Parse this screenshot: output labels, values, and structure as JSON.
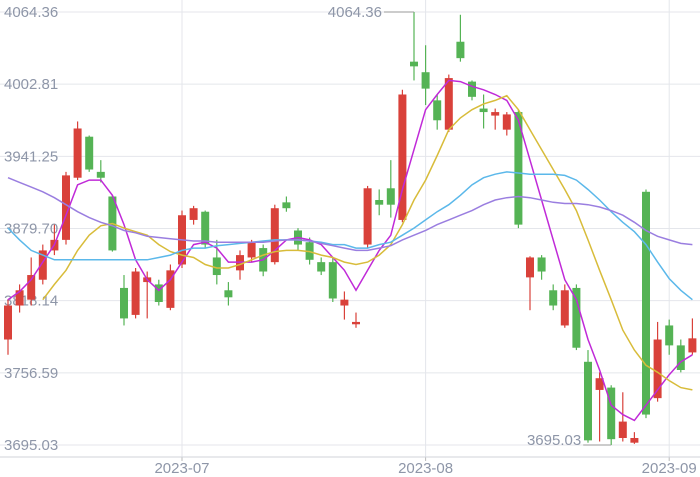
{
  "chart_data": {
    "type": "candlestick",
    "categories": [
      null,
      null,
      null,
      null,
      null,
      null,
      null,
      null,
      null,
      null,
      null,
      null,
      null,
      null,
      null,
      "2023-07",
      null,
      null,
      null,
      null,
      null,
      null,
      null,
      null,
      null,
      null,
      null,
      null,
      null,
      null,
      null,
      null,
      null,
      null,
      null,
      null,
      "2023-08",
      null,
      null,
      null,
      null,
      null,
      null,
      null,
      null,
      null,
      null,
      null,
      null,
      null,
      null,
      null,
      null,
      null,
      null,
      null,
      null,
      "2023-09",
      null,
      null
    ],
    "open": [
      3785,
      3814,
      3819,
      3836,
      3861,
      3870,
      3923,
      3958,
      3928,
      3907,
      3829,
      3806,
      3834,
      3832,
      3812,
      3849,
      3887,
      3894,
      3855,
      3827,
      3844,
      3855,
      3863,
      3851,
      3902,
      3878,
      3868,
      3851,
      3851,
      3814,
      3798,
      3866,
      3904,
      3914,
      3887,
      4022,
      4013,
      3989,
      3964,
      4039,
      4005,
      3982,
      3976,
      3964,
      3979,
      3838,
      3855,
      3827,
      3797,
      3829,
      3766,
      3742,
      3744,
      3701,
      3697,
      3911,
      3735,
      3797,
      3780,
      3774
    ],
    "close": [
      3814,
      3827,
      3840,
      3861,
      3870,
      3925,
      3965,
      3930,
      3923,
      3861,
      3803,
      3843,
      3838,
      3817,
      3844,
      3891,
      3897,
      3866,
      3840,
      3821,
      3857,
      3868,
      3843,
      3897,
      3897,
      3866,
      3853,
      3843,
      3820,
      3819,
      3800,
      3914,
      3900,
      3900,
      3994,
      4018,
      3999,
      3972,
      4008,
      4025,
      3992,
      3979,
      3979,
      3977,
      3883,
      3855,
      3843,
      3814,
      3827,
      3778,
      3699,
      3752,
      3700,
      3715,
      3701,
      3721,
      3785,
      3780,
      3759,
      3786
    ],
    "low": [
      3772,
      3808,
      3814,
      3832,
      3857,
      3866,
      3921,
      3928,
      3919,
      3860,
      3797,
      3803,
      3803,
      3814,
      3810,
      3846,
      3883,
      3863,
      3832,
      3814,
      3836,
      3851,
      3839,
      3849,
      3894,
      3861,
      3849,
      3840,
      3817,
      3802,
      3795,
      3863,
      3891,
      3889,
      3885,
      4006,
      3985,
      3964,
      3962,
      4022,
      3989,
      3965,
      3964,
      3959,
      3880,
      3810,
      3836,
      3810,
      3795,
      3776,
      3697,
      3698,
      3695.03,
      3698,
      3696,
      3718,
      3732,
      3772,
      3757,
      3772
    ],
    "high": [
      3819,
      3832,
      3855,
      3866,
      3883,
      3928,
      3971,
      3959,
      3938,
      3908,
      3840,
      3846,
      3843,
      3836,
      3849,
      3895,
      3899,
      3895,
      3870,
      3834,
      3861,
      3870,
      3866,
      3900,
      3907,
      3880,
      3872,
      3855,
      3855,
      3826,
      3808,
      3916,
      3913,
      3938,
      3998,
      4064.36,
      4036,
      3994,
      4011,
      4062,
      4006,
      3994,
      3982,
      3979,
      3981,
      3856,
      3857,
      3832,
      3832,
      3832,
      3776,
      3757,
      3746,
      3740,
      3706,
      3913,
      3800,
      3802,
      3785,
      3803
    ],
    "up_color": "#d9413a",
    "down_color": "#55b355",
    "series": [
      {
        "color": "#c02ad8",
        "values": [
          3819,
          3826,
          3836,
          3851,
          3866,
          3891,
          3917,
          3921,
          3921,
          3908,
          3883,
          3853,
          3836,
          3827,
          3836,
          3851,
          3866,
          3868,
          3863,
          3851,
          3851,
          3851,
          3853,
          3861,
          3870,
          3872,
          3870,
          3866,
          3855,
          3844,
          3827,
          3844,
          3861,
          3874,
          3913,
          3947,
          3981,
          3994,
          4006,
          4005,
          4001,
          3998,
          3994,
          3989,
          3972,
          3938,
          3904,
          3870,
          3836,
          3819,
          3785,
          3759,
          3729,
          3721,
          3716,
          3729,
          3742,
          3755,
          3766,
          3772
        ]
      },
      {
        "color": "#d8bc3a",
        "values": [
          null,
          null,
          null,
          3819,
          3832,
          3844,
          3861,
          3874,
          3882,
          3884,
          3880,
          3877,
          3874,
          3866,
          3860,
          3857,
          3855,
          3849,
          3846,
          3846,
          3849,
          3853,
          3857,
          3860,
          3861,
          3861,
          3860,
          3857,
          3855,
          3851,
          3849,
          3851,
          3857,
          3866,
          3883,
          3904,
          3921,
          3942,
          3964,
          3974,
          3981,
          3986,
          3989,
          3993,
          3981,
          3964,
          3947,
          3930,
          3913,
          3895,
          3870,
          3844,
          3819,
          3793,
          3776,
          3763,
          3757,
          3750,
          3744,
          3742
        ]
      },
      {
        "color": "#5bb8ea",
        "values": [
          3880,
          3870,
          3861,
          3857,
          3853,
          3853,
          3853,
          3853,
          3853,
          3853,
          3853,
          3853,
          3853,
          3855,
          3857,
          3861,
          3863,
          3863,
          3865,
          3866,
          3867,
          3868,
          3869,
          3870,
          3870,
          3870,
          3869,
          3868,
          3866,
          3866,
          3863,
          3863,
          3866,
          3868,
          3874,
          3880,
          3887,
          3894,
          3900,
          3908,
          3917,
          3923,
          3926,
          3928,
          3927,
          3926,
          3926,
          3926,
          3925,
          3921,
          3913,
          3904,
          3894,
          3885,
          3877,
          3866,
          3851,
          3837,
          3827,
          3819
        ]
      },
      {
        "color": "#9a7ee0",
        "values": [
          3923,
          3919,
          3915,
          3911,
          3906,
          3900,
          3894,
          3889,
          3885,
          3882,
          3878,
          3876,
          3873,
          3872,
          3871,
          3870,
          3869,
          3869,
          3868,
          3868,
          3868,
          3868,
          3868,
          3869,
          3870,
          3870,
          3869,
          3867,
          3865,
          3863,
          3861,
          3861,
          3863,
          3865,
          3870,
          3874,
          3878,
          3883,
          3887,
          3891,
          3895,
          3900,
          3904,
          3906,
          3907,
          3906,
          3904,
          3902,
          3901,
          3901,
          3900,
          3898,
          3895,
          3891,
          3885,
          3878,
          3873,
          3870,
          3867,
          3866
        ]
      }
    ],
    "ylim": [
      3695.03,
      4064.36
    ],
    "yticks": [
      3695.03,
      3756.59,
      3818.14,
      {
        "value": 3879.7,
        "label": "3879.70"
      },
      3941.25,
      4002.81,
      4064.36
    ],
    "grid": true
  }
}
